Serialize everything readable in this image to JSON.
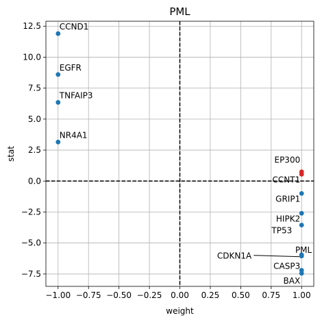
{
  "chart_data": {
    "type": "scatter",
    "title": "PML",
    "xlabel": "weight",
    "ylabel": "stat",
    "xlim": [
      -1.1,
      1.1
    ],
    "ylim": [
      -8.5,
      12.9
    ],
    "xticks": [
      -1.0,
      -0.75,
      -0.5,
      -0.25,
      0.0,
      0.25,
      0.5,
      0.75,
      1.0
    ],
    "xtick_labels": [
      "−1.00",
      "−0.75",
      "−0.50",
      "−0.25",
      "0.00",
      "0.25",
      "0.50",
      "0.75",
      "1.00"
    ],
    "yticks": [
      -7.5,
      -5.0,
      -2.5,
      0.0,
      2.5,
      5.0,
      7.5,
      10.0,
      12.5
    ],
    "ytick_labels": [
      "−7.5",
      "−5.0",
      "−2.5",
      "0.0",
      "2.5",
      "5.0",
      "7.5",
      "10.0",
      "12.5"
    ],
    "grid": true,
    "reference_lines": {
      "x": 0,
      "y": 0
    },
    "colors": {
      "negative_weight": "#1f77b4",
      "positive_stat": "#d62728",
      "positive_weight": "#1f77b4"
    },
    "points": [
      {
        "label": "CCND1",
        "x": -1.0,
        "y": 11.9
      },
      {
        "label": "EGFR",
        "x": -1.0,
        "y": 8.6
      },
      {
        "label": "TNFAIP3",
        "x": -1.0,
        "y": 6.35
      },
      {
        "label": "NR4A1",
        "x": -1.0,
        "y": 3.15
      },
      {
        "label": "EP300",
        "x": 1.0,
        "y": 0.75
      },
      {
        "label": "CCNT1",
        "x": 1.0,
        "y": 0.55
      },
      {
        "label": "GRIP1",
        "x": 1.0,
        "y": -1.0
      },
      {
        "label": "HIPK2",
        "x": 1.0,
        "y": -2.6
      },
      {
        "label": "TP53",
        "x": 1.0,
        "y": -3.55
      },
      {
        "label": "PML",
        "x": 1.0,
        "y": -5.95
      },
      {
        "label": "CDKN1A",
        "x": 1.0,
        "y": -6.05
      },
      {
        "label": "CASP3",
        "x": 1.0,
        "y": -7.2
      },
      {
        "label": "BAX",
        "x": 1.0,
        "y": -7.45
      }
    ]
  }
}
